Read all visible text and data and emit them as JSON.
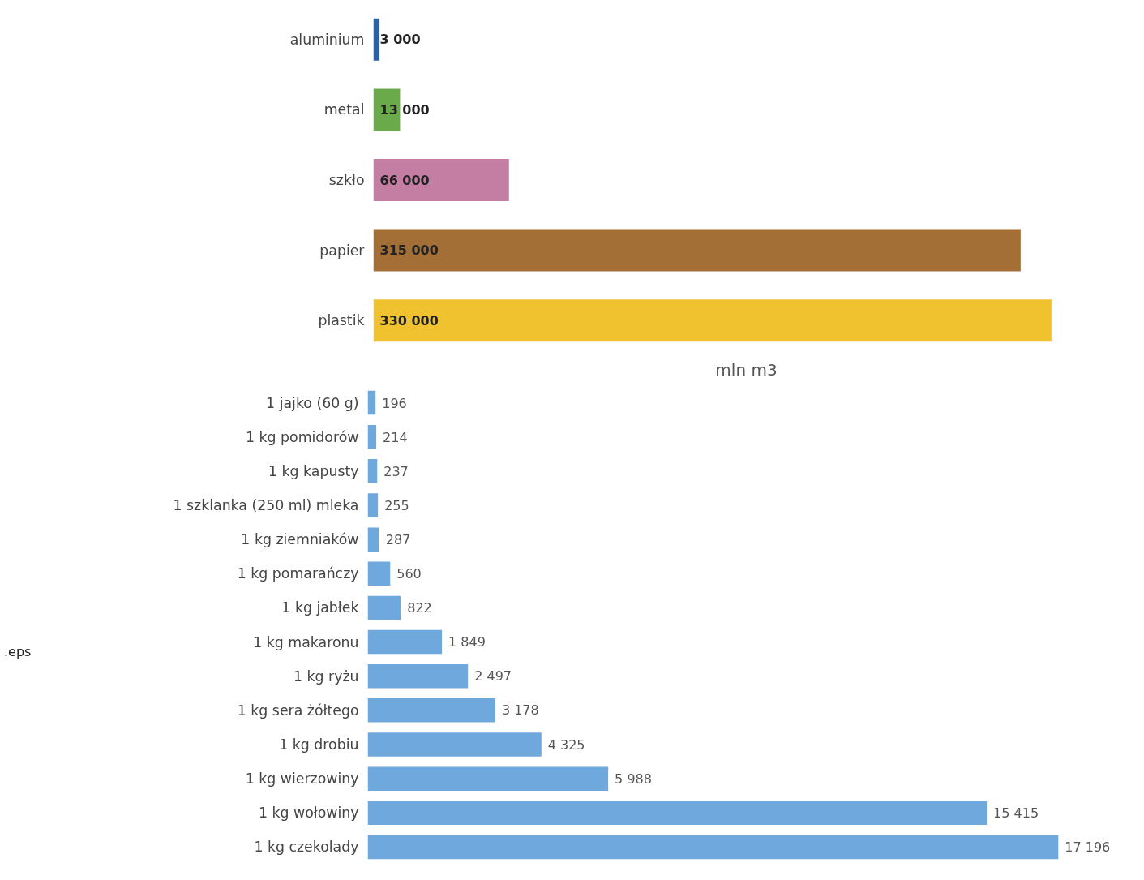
{
  "chart_data": [
    {
      "type": "bar",
      "orientation": "horizontal",
      "xlabel": "mln m3",
      "categories": [
        "aluminium",
        "metal",
        "szkło",
        "papier",
        "plastik"
      ],
      "values": [
        3000,
        13000,
        66000,
        315000,
        330000
      ],
      "colors": [
        "#2a62a8",
        "#6aaa4a",
        "#c47ea3",
        "#a36f37",
        "#f0c230"
      ],
      "value_labels": [
        "3 000",
        "13 000",
        "66 000",
        "315 000",
        "330 000"
      ],
      "grid": false
    },
    {
      "type": "bar",
      "orientation": "horizontal",
      "categories": [
        "1 jajko (60 g)",
        "1 kg pomidorów",
        "1 kg kapusty",
        "1 szklanka (250 ml) mleka",
        "1 kg ziemniaków",
        "1 kg pomarańczy",
        "1 kg jabłek",
        "1 kg makaronu",
        "1 kg ryżu",
        "1 kg sera żółtego",
        "1 kg drobiu",
        "1 kg wierzowiny",
        "1 kg wołowiny",
        "1 kg czekolady"
      ],
      "values": [
        196,
        214,
        237,
        255,
        287,
        560,
        822,
        1849,
        2497,
        3178,
        4325,
        5988,
        15415,
        17196
      ],
      "color": "#6fa8dc",
      "value_labels": [
        "196",
        "214",
        "237",
        "255",
        "287",
        "560",
        "822",
        "1 849",
        "2 497",
        "3 178",
        "4 325",
        "5 988",
        "15 415",
        "17 196"
      ],
      "annotations": [
        ".eps"
      ],
      "grid": false
    }
  ]
}
